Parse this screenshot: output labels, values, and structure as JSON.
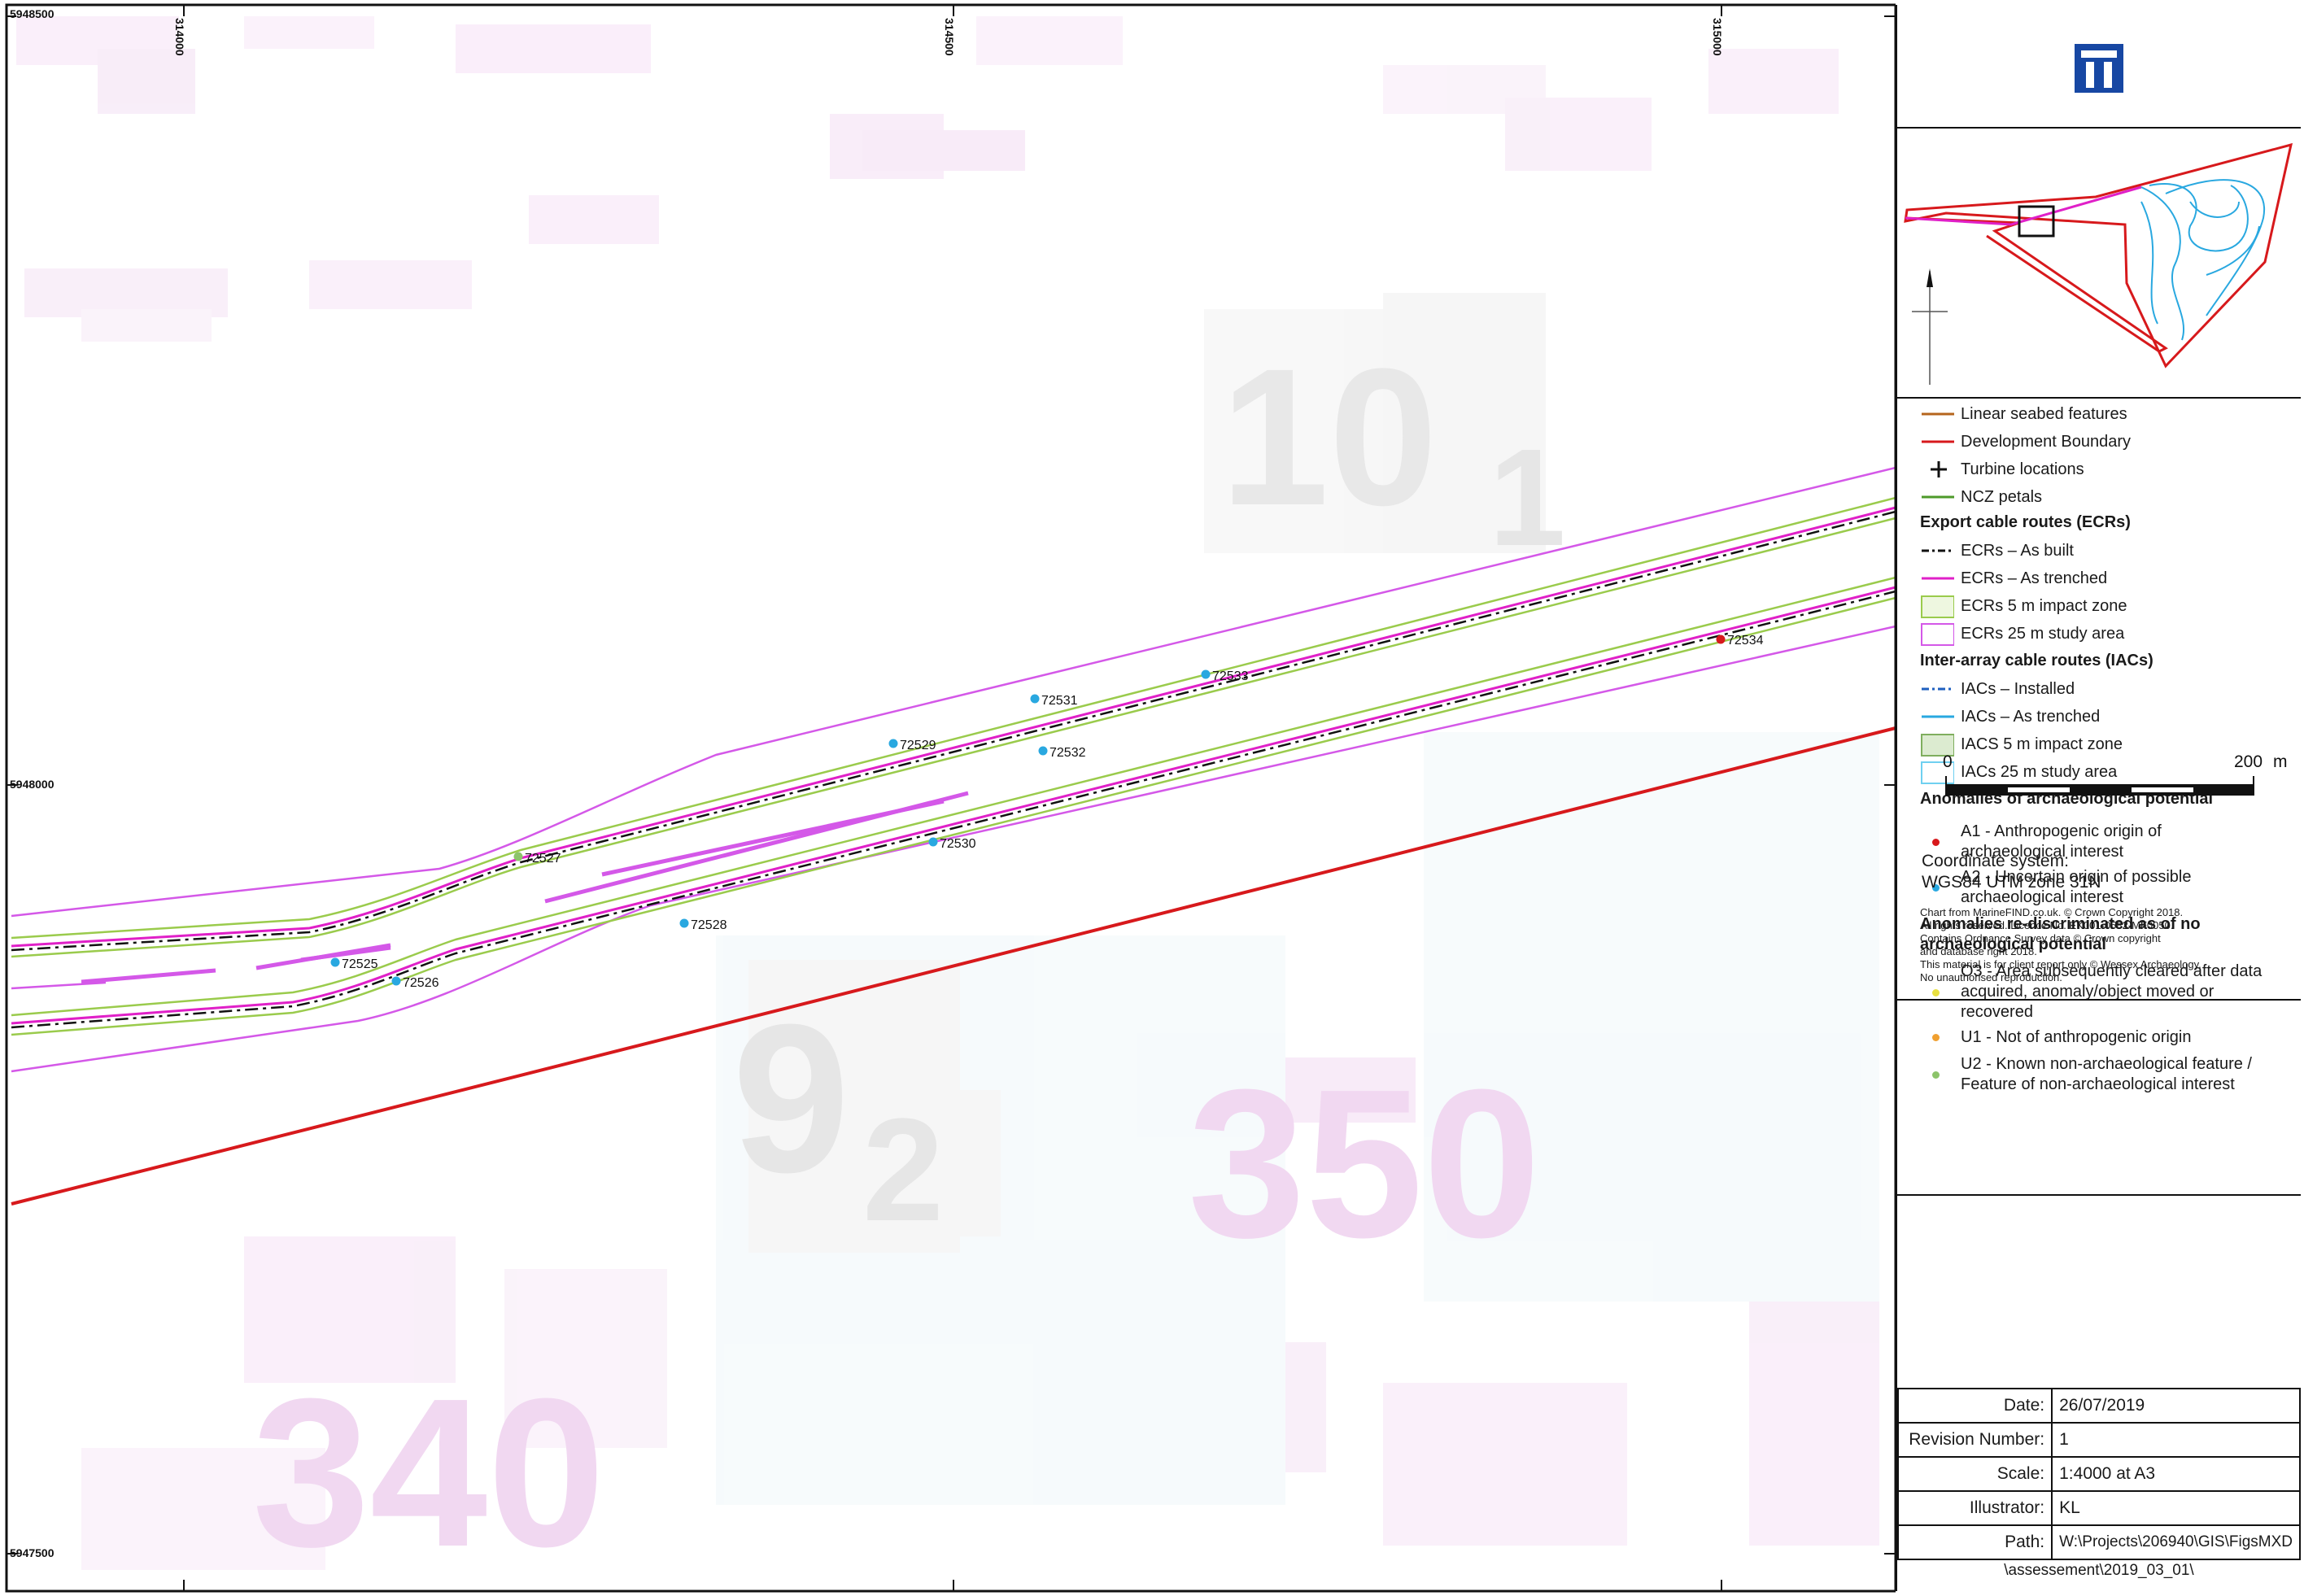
{
  "map": {
    "top_left_northing": "5948500",
    "mid_northing": "5948000",
    "bottom_northing": "5947500",
    "eastings": [
      "314000",
      "314500",
      "315000"
    ],
    "depth_labels": [
      "10",
      "1",
      "9",
      "2",
      "350",
      "340"
    ],
    "anomalies": [
      {
        "id": "72534",
        "class": "A1"
      },
      {
        "id": "72533",
        "class": "A2"
      },
      {
        "id": "72531",
        "class": "A2"
      },
      {
        "id": "72529",
        "class": "A2"
      },
      {
        "id": "72532",
        "class": "A2"
      },
      {
        "id": "72530",
        "class": "A2"
      },
      {
        "id": "72527",
        "class": "U2"
      },
      {
        "id": "72528",
        "class": "A2"
      },
      {
        "id": "72525",
        "class": "A2"
      },
      {
        "id": "72526",
        "class": "A2"
      }
    ]
  },
  "legend": {
    "linear_seabed": "Linear seabed features",
    "dev_boundary": "Development Boundary",
    "turbines": "Turbine locations",
    "ncz": "NCZ petals",
    "ecr_head": "Export cable routes (ECRs)",
    "ecr_built": "ECRs – As built",
    "ecr_trenched": "ECRs – As trenched",
    "ecr_5m": "ECRs 5 m impact zone",
    "ecr_25m": "ECRs 25 m study area",
    "iac_head": "Inter-array cable routes (IACs)",
    "iac_installed": "IACs – Installed",
    "iac_trenched": "IACs – As trenched",
    "iac_5m": "IACS 5 m impact zone",
    "iac_25m": "IACs 25 m study area",
    "anom_head": "Anomalies of archaeological potential",
    "a1_l1": "A1 - Anthropogenic origin of",
    "a1_l2": "archaeological interest",
    "a2_l1": "A2 - Uncertain origin of possible",
    "a2_l2": "archaeological interest",
    "redisc_l1": "Anomalies re-discriminated as of no",
    "redisc_l2": "archaeological potential",
    "o3_l1": "O3 - Area subsequently cleared after data",
    "o3_l2": "acquired, anomaly/object moved or",
    "o3_l3": "recovered",
    "u1": "U1 - Not of anthropogenic origin",
    "u2_l1": "U2 - Known non-archaeological feature /",
    "u2_l2": "Feature of non-archaeological interest",
    "colors": {
      "linear": "#b5651d",
      "boundary": "#d7191c",
      "ncz": "#4d9a2a",
      "ecr_trenched": "#e020c8",
      "iac_installed": "#1f5fbf",
      "iac_trenched": "#29a8e0",
      "a1": "#d7191c",
      "a2": "#29a8e0",
      "o3": "#e8e040",
      "u1": "#f0a030",
      "u2": "#8cc46a"
    }
  },
  "scale": {
    "left": "0",
    "right": "200",
    "unit": "m"
  },
  "coords": {
    "title": "Coordinate system:",
    "value": "WGS84 UTM zone 31N",
    "notice": [
      "Chart from MarineFIND.co.uk. © Crown Copyright 2018.",
      "All rights reserved. Licence No. EK001-0582-MF0050.",
      "Contains Ordnance Survey data © Crown copyright",
      "and database right 2018.",
      "This material is for client report only © Wessex Archaeology.",
      "No unauthorised reproduction."
    ]
  },
  "meta": {
    "date_k": "Date:",
    "date_v": "26/07/2019",
    "rev_k": "Revision Number:",
    "rev_v": "1",
    "scale_k": "Scale:",
    "scale_v": "1:4000 at A3",
    "ill_k": "Illustrator:",
    "ill_v": "KL",
    "path_k": "Path:",
    "path_v": "W:\\Projects\\206940\\GIS\\FigsMXD",
    "path_v2": "\\assessement\\2019_03_01\\"
  }
}
